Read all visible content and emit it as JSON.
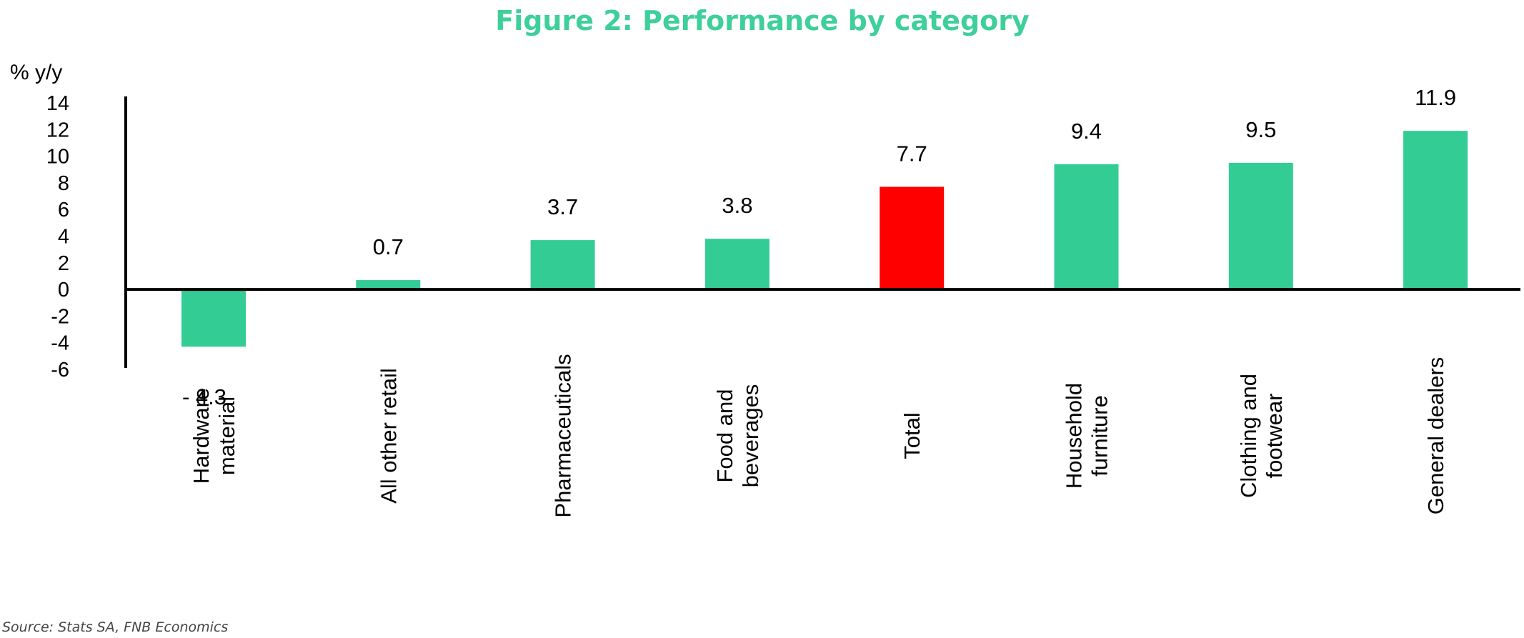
{
  "chart_data": {
    "type": "bar",
    "title": "Figure 2: Performance by category",
    "ylabel": "% y/y",
    "ylim": [
      -6,
      14
    ],
    "yticks": [
      14,
      12,
      10,
      8,
      6,
      4,
      2,
      0,
      -2,
      -4,
      -6
    ],
    "categories": [
      [
        "Hardware",
        "material"
      ],
      [
        "All other retail"
      ],
      [
        "Pharmaceuticals"
      ],
      [
        "Food and",
        "beverages"
      ],
      [
        "Total"
      ],
      [
        "Household",
        "furniture"
      ],
      [
        "Clothing and",
        "footwear"
      ],
      [
        "General dealers"
      ]
    ],
    "values": [
      -4.3,
      0.7,
      3.7,
      3.8,
      7.7,
      9.4,
      9.5,
      11.9
    ],
    "data_labels": [
      "- 4.3",
      "0.7",
      "3.7",
      "3.8",
      "7.7",
      "9.4",
      "9.5",
      "11.9"
    ],
    "highlight_category_index": 4,
    "grid": false,
    "legend": "none"
  },
  "colors": {
    "title": "#3ecf9a",
    "bar": "#33cc94",
    "highlight": "#ff0000",
    "axis": "#000000"
  },
  "source": "Source: Stats SA, FNB Economics"
}
